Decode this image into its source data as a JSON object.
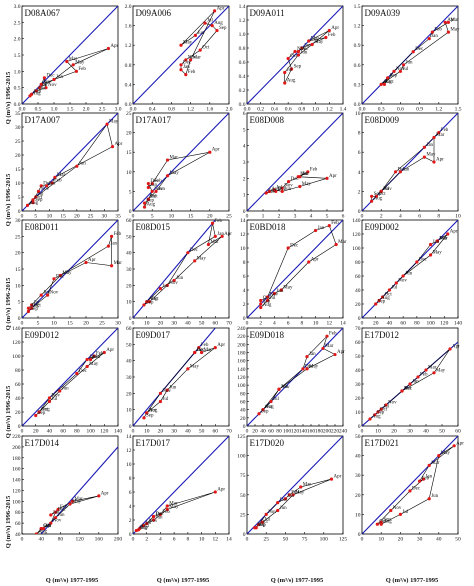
{
  "colors": {
    "identity_line": "#1a1ab8",
    "series_line": "#000000",
    "point": "#e01818"
  },
  "axis_titles": {
    "x": "Q (m³/s) 1977-1995",
    "y": "Q (m³/s) 1996-2015"
  },
  "chart_data": [
    {
      "type": "scatter",
      "title": "D08A067",
      "xlim": [
        0,
        3
      ],
      "ylim": [
        0,
        3
      ],
      "xticks": [
        "0.0",
        "0.5",
        "1.0",
        "1.5",
        "2.0",
        "2.5",
        "3.0"
      ],
      "yticks": [
        "0.0",
        "0.5",
        "1.0",
        "1.5",
        "2.0",
        "2.5",
        "3.0"
      ],
      "months": [
        "Jan",
        "Feb",
        "Mar",
        "Apr",
        "May",
        "Jun",
        "Jul",
        "Aug",
        "Sep",
        "Oct",
        "Nov",
        "Dec"
      ],
      "x": [
        0.6,
        1.7,
        1.4,
        2.7,
        1.6,
        1.0,
        0.55,
        0.25,
        0.3,
        0.45,
        0.75,
        0.7
      ],
      "y": [
        0.6,
        1.0,
        1.3,
        1.7,
        1.2,
        0.75,
        0.5,
        0.25,
        0.3,
        0.4,
        0.5,
        0.8
      ]
    },
    {
      "type": "scatter",
      "title": "D09A006",
      "xlim": [
        0,
        2
      ],
      "ylim": [
        0,
        2
      ],
      "xticks": [
        "0.0",
        "0.4",
        "0.8",
        "1.2",
        "1.6",
        "2.0"
      ],
      "yticks": [
        "0.0",
        "0.4",
        "0.8",
        "1.2",
        "1.6",
        "2.0"
      ],
      "months": [
        "Jan",
        "Feb",
        "Mar",
        "Apr",
        "May",
        "Jun",
        "Jul",
        "Aug",
        "Sep",
        "Oct",
        "Nov",
        "Dec"
      ],
      "x": [
        1.0,
        1.1,
        1.2,
        1.7,
        1.0,
        1.3,
        1.5,
        1.65,
        1.75,
        1.4,
        1.1,
        1.0
      ],
      "y": [
        0.7,
        0.6,
        0.9,
        1.9,
        1.2,
        1.4,
        1.65,
        1.6,
        1.5,
        1.1,
        0.9,
        0.8
      ]
    },
    {
      "type": "scatter",
      "title": "D09A011",
      "xlim": [
        0,
        1.4
      ],
      "ylim": [
        0,
        1.4
      ],
      "xticks": [
        "0.0",
        "0.2",
        "0.4",
        "0.6",
        "0.8",
        "1.0",
        "1.2",
        "1.4"
      ],
      "yticks": [
        "0.0",
        "0.2",
        "0.4",
        "0.6",
        "0.8",
        "1.0",
        "1.2",
        "1.4"
      ],
      "months": [
        "Jan",
        "Feb",
        "Mar",
        "Apr",
        "May",
        "Jun",
        "Jul",
        "Aug",
        "Sep",
        "Oct",
        "Nov",
        "Dec"
      ],
      "x": [
        0.8,
        1.15,
        0.9,
        1.2,
        0.95,
        0.75,
        0.55,
        0.55,
        0.65,
        0.6,
        0.7,
        0.75
      ],
      "y": [
        0.8,
        0.95,
        0.9,
        1.05,
        0.85,
        0.7,
        0.45,
        0.3,
        0.5,
        0.65,
        0.75,
        0.75
      ]
    },
    {
      "type": "scatter",
      "title": "D09A039",
      "xlim": [
        0,
        1.5
      ],
      "ylim": [
        0,
        1.5
      ],
      "xticks": [
        "0.0",
        "0.3",
        "0.6",
        "0.9",
        "1.2",
        "1.5"
      ],
      "yticks": [
        "0.0",
        "0.3",
        "0.6",
        "0.9",
        "1.2",
        "1.5"
      ],
      "months": [
        "Jan",
        "Feb",
        "Mar",
        "Apr",
        "May",
        "Jun",
        "Jul",
        "Aug",
        "Sep",
        "Oct",
        "Nov",
        "Dec"
      ],
      "x": [
        1.05,
        1.1,
        1.35,
        1.3,
        1.35,
        0.65,
        0.6,
        0.3,
        0.4,
        0.35,
        0.5,
        0.8
      ],
      "y": [
        1.0,
        1.1,
        1.25,
        1.25,
        1.1,
        0.6,
        0.5,
        0.3,
        0.4,
        0.3,
        0.5,
        0.8
      ]
    },
    {
      "type": "scatter",
      "title": "D17A007",
      "xlim": [
        0,
        35
      ],
      "ylim": [
        0,
        35
      ],
      "xticks": [
        "0",
        "5",
        "10",
        "15",
        "20",
        "25",
        "30",
        "35"
      ],
      "yticks": [
        "0",
        "5",
        "10",
        "15",
        "20",
        "25",
        "30",
        "35"
      ],
      "months": [
        "Jan",
        "Feb",
        "Mar",
        "Apr",
        "May",
        "Jun",
        "Jul",
        "Aug",
        "Sep",
        "Oct",
        "Nov",
        "Dec"
      ],
      "x": [
        9,
        11,
        12,
        33,
        31,
        20,
        5,
        2,
        4,
        4,
        6,
        7
      ],
      "y": [
        9,
        10,
        12,
        23,
        31,
        16,
        5,
        2,
        3,
        4,
        7,
        9
      ]
    },
    {
      "type": "scatter",
      "title": "D17A017",
      "xlim": [
        0,
        25
      ],
      "ylim": [
        0,
        25
      ],
      "xticks": [
        "0",
        "5",
        "10",
        "15",
        "20",
        "25"
      ],
      "yticks": [
        "0",
        "5",
        "10",
        "15",
        "20",
        "25"
      ],
      "months": [
        "Jan",
        "Feb",
        "Mar",
        "Apr",
        "May",
        "Jun",
        "Jul",
        "Aug",
        "Sep",
        "Oct",
        "Nov",
        "Dec"
      ],
      "x": [
        4,
        5,
        9,
        20,
        9,
        6,
        4,
        3,
        3,
        4,
        5,
        4
      ],
      "y": [
        6,
        7,
        13,
        15,
        9,
        5,
        3,
        1,
        2,
        3,
        5,
        7
      ]
    },
    {
      "type": "scatter",
      "title": "E08D008",
      "xlim": [
        0,
        6
      ],
      "ylim": [
        0,
        6
      ],
      "xticks": [
        "0",
        "1",
        "2",
        "3",
        "4",
        "5",
        "6"
      ],
      "yticks": [
        "0",
        "1",
        "2",
        "3",
        "4",
        "5",
        "6"
      ],
      "months": [
        "Jan",
        "Feb",
        "Mar",
        "Apr",
        "May",
        "Jun",
        "Jul",
        "Aug",
        "Sep",
        "Oct",
        "Nov",
        "Dec"
      ],
      "x": [
        3.3,
        3.8,
        3.2,
        5.0,
        3.3,
        2.2,
        1.7,
        1.4,
        1.2,
        1.8,
        2.2,
        2.6
      ],
      "y": [
        2.1,
        2.4,
        2.1,
        2.0,
        1.5,
        1.2,
        1.3,
        1.2,
        1.1,
        1.2,
        1.4,
        1.8
      ]
    },
    {
      "type": "scatter",
      "title": "E08D009",
      "xlim": [
        0,
        10
      ],
      "ylim": [
        0,
        10
      ],
      "xticks": [
        "0",
        "2",
        "4",
        "6",
        "8",
        "10"
      ],
      "yticks": [
        "0",
        "2",
        "4",
        "6",
        "8",
        "10"
      ],
      "months": [
        "Jan",
        "Feb",
        "Mar",
        "Apr",
        "May",
        "Jun",
        "Jul",
        "Aug",
        "Sep",
        "Oct",
        "Nov",
        "Dec"
      ],
      "x": [
        6.5,
        8,
        7.5,
        7.5,
        6.5,
        4,
        2,
        1,
        1,
        1.5,
        2,
        3.5
      ],
      "y": [
        6.5,
        8,
        7.5,
        5,
        5.5,
        4,
        2,
        1,
        1.5,
        1.5,
        2,
        4
      ]
    },
    {
      "type": "scatter",
      "title": "E08D011",
      "xlim": [
        0,
        30
      ],
      "ylim": [
        0,
        30
      ],
      "xticks": [
        "0",
        "5",
        "10",
        "15",
        "20",
        "25",
        "30"
      ],
      "yticks": [
        "0",
        "5",
        "10",
        "15",
        "20",
        "25",
        "30"
      ],
      "months": [
        "Jan",
        "Feb",
        "Mar",
        "Apr",
        "May",
        "Jun",
        "Jul",
        "Aug",
        "Sep",
        "Oct",
        "Nov",
        "Dec"
      ],
      "x": [
        27,
        28,
        28,
        20,
        12,
        6,
        3,
        2,
        2,
        3,
        8,
        10
      ],
      "y": [
        22,
        25,
        16,
        17,
        13,
        7,
        4,
        3,
        2,
        3,
        7,
        12
      ]
    },
    {
      "type": "scatter",
      "title": "E08D015",
      "xlim": [
        0,
        70
      ],
      "ylim": [
        0,
        60
      ],
      "xticks": [
        "0",
        "10",
        "20",
        "30",
        "40",
        "50",
        "60",
        "70"
      ],
      "yticks": [
        "0",
        "10",
        "20",
        "30",
        "40",
        "50",
        "60"
      ],
      "months": [
        "Jan",
        "Feb",
        "Mar",
        "Apr",
        "May",
        "Jun",
        "Jul",
        "Aug",
        "Sep",
        "Oct",
        "Nov",
        "Dec"
      ],
      "x": [
        60,
        58,
        55,
        65,
        45,
        30,
        20,
        10,
        8,
        12,
        25,
        40
      ],
      "y": [
        50,
        58,
        45,
        50,
        35,
        23,
        18,
        10,
        8,
        10,
        20,
        40
      ]
    },
    {
      "type": "scatter",
      "title": "E0BD018",
      "xlim": [
        0,
        14
      ],
      "ylim": [
        0,
        14
      ],
      "xticks": [
        "0",
        "2",
        "4",
        "6",
        "8",
        "10",
        "12",
        "14"
      ],
      "yticks": [
        "0",
        "2",
        "4",
        "6",
        "8",
        "10",
        "12",
        "14"
      ],
      "months": [
        "Jan",
        "Feb",
        "Mar",
        "Apr",
        "May",
        "Jun",
        "Jul",
        "Aug",
        "Sep",
        "Oct",
        "Nov",
        "Dec"
      ],
      "x": [
        10,
        12,
        13,
        9,
        5,
        4,
        3,
        2,
        2,
        2,
        3,
        6
      ],
      "y": [
        12.5,
        13.2,
        10.5,
        8,
        4,
        3.5,
        2.5,
        1.5,
        2,
        2.5,
        3,
        10
      ]
    },
    {
      "type": "scatter",
      "title": "E09D002",
      "xlim": [
        0,
        140
      ],
      "ylim": [
        0,
        140
      ],
      "xticks": [
        "0",
        "20",
        "40",
        "60",
        "80",
        "100",
        "120",
        "140"
      ],
      "yticks": [
        "0",
        "20",
        "40",
        "60",
        "80",
        "100",
        "120",
        "140"
      ],
      "months": [
        "Jan",
        "Feb",
        "Mar",
        "Apr",
        "May",
        "Jun",
        "Jul",
        "Aug",
        "Sep",
        "Oct",
        "Nov",
        "Dec"
      ],
      "x": [
        100,
        110,
        110,
        125,
        100,
        60,
        40,
        25,
        20,
        30,
        50,
        80
      ],
      "y": [
        105,
        110,
        110,
        120,
        90,
        60,
        40,
        25,
        20,
        30,
        50,
        80
      ]
    },
    {
      "type": "scatter",
      "title": "E09D012",
      "xlim": [
        0,
        140
      ],
      "ylim": [
        0,
        140
      ],
      "xticks": [
        "0",
        "20",
        "40",
        "60",
        "80",
        "100",
        "120",
        "140"
      ],
      "yticks": [
        "0",
        "20",
        "40",
        "60",
        "80",
        "100",
        "120",
        "140"
      ],
      "months": [
        "Jan",
        "Feb",
        "Mar",
        "Apr",
        "May",
        "Jun",
        "Jul",
        "Aug",
        "Sep",
        "Oct",
        "Nov",
        "Dec"
      ],
      "x": [
        95,
        105,
        100,
        120,
        95,
        55,
        40,
        25,
        20,
        25,
        40,
        80
      ],
      "y": [
        95,
        100,
        95,
        105,
        85,
        50,
        35,
        20,
        15,
        20,
        40,
        75
      ]
    },
    {
      "type": "scatter",
      "title": "E09D017",
      "xlim": [
        0,
        70
      ],
      "ylim": [
        0,
        60
      ],
      "xticks": [
        "0",
        "10",
        "20",
        "30",
        "40",
        "50",
        "60",
        "70"
      ],
      "yticks": [
        "0",
        "10",
        "20",
        "30",
        "40",
        "50",
        "60"
      ],
      "months": [
        "Jan",
        "Feb",
        "Mar",
        "Apr",
        "May",
        "Jun",
        "Jul",
        "Aug",
        "Sep",
        "Oct",
        "Nov",
        "Dec"
      ],
      "x": [
        45,
        48,
        50,
        60,
        40,
        25,
        20,
        10,
        8,
        10,
        20,
        45
      ],
      "y": [
        45,
        48,
        45,
        48,
        35,
        22,
        15,
        8,
        5,
        8,
        20,
        45
      ]
    },
    {
      "type": "scatter",
      "title": "E09D018",
      "xlim": [
        0,
        240
      ],
      "ylim": [
        0,
        240
      ],
      "xticks": [
        "0",
        "20",
        "40",
        "60",
        "80",
        "100",
        "120",
        "140",
        "160",
        "180",
        "200",
        "220",
        "240"
      ],
      "yticks": [
        "0",
        "20",
        "40",
        "60",
        "80",
        "100",
        "120",
        "140",
        "160",
        "180",
        "200",
        "220",
        "240"
      ],
      "months": [
        "Jan",
        "Feb",
        "Mar",
        "Apr",
        "May",
        "Jun",
        "Jul",
        "Aug",
        "Sep",
        "Oct",
        "Nov",
        "Dec"
      ],
      "x": [
        150,
        200,
        190,
        220,
        150,
        80,
        60,
        40,
        30,
        40,
        80,
        140
      ],
      "y": [
        170,
        220,
        190,
        175,
        140,
        90,
        60,
        40,
        30,
        40,
        90,
        140
      ]
    },
    {
      "type": "scatter",
      "title": "E17D012",
      "xlim": [
        0,
        60
      ],
      "ylim": [
        0,
        70
      ],
      "xticks": [
        "0",
        "10",
        "20",
        "30",
        "40",
        "50",
        "60"
      ],
      "yticks": [
        "0",
        "10",
        "20",
        "30",
        "40",
        "50",
        "60",
        "70"
      ],
      "months": [
        "Jan",
        "Feb",
        "Mar",
        "Apr",
        "May",
        "Jun",
        "Jul",
        "Aug",
        "Sep",
        "Oct",
        "Nov",
        "Dec"
      ],
      "x": [
        30,
        35,
        40,
        55,
        45,
        25,
        12,
        5,
        8,
        10,
        15,
        25
      ],
      "y": [
        30,
        35,
        40,
        55,
        38,
        25,
        12,
        5,
        8,
        10,
        15,
        25
      ]
    },
    {
      "type": "scatter",
      "title": "E17D014",
      "xlim": [
        0,
        200
      ],
      "ylim": [
        40,
        220
      ],
      "xticks": [
        "0",
        "40",
        "80",
        "120",
        "160",
        "200"
      ],
      "yticks": [
        "40",
        "60",
        "80",
        "100",
        "120",
        "140",
        "160",
        "180",
        "200",
        "220"
      ],
      "months": [
        "Jan",
        "Feb",
        "Mar",
        "Apr",
        "May",
        "Jun",
        "Jul",
        "Aug",
        "Sep",
        "Oct",
        "Nov",
        "Dec"
      ],
      "x": [
        60,
        75,
        105,
        160,
        100,
        70,
        45,
        30,
        40,
        40,
        60,
        70
      ],
      "y": [
        75,
        85,
        100,
        110,
        95,
        70,
        50,
        40,
        50,
        50,
        60,
        80
      ]
    },
    {
      "type": "scatter",
      "title": "E17D017",
      "xlim": [
        0,
        14
      ],
      "ylim": [
        0,
        14
      ],
      "xticks": [
        "0",
        "2",
        "4",
        "6",
        "8",
        "10",
        "12",
        "14"
      ],
      "yticks": [
        "0",
        "2",
        "4",
        "6",
        "8",
        "10",
        "12",
        "14"
      ],
      "months": [
        "Jan",
        "Feb",
        "Mar",
        "Apr",
        "May",
        "Jun",
        "Jul",
        "Aug",
        "Sep",
        "Oct",
        "Nov",
        "Dec"
      ],
      "x": [
        3,
        4,
        5,
        12,
        5,
        3,
        1.5,
        0.5,
        0.8,
        1,
        2,
        3
      ],
      "y": [
        2.5,
        2.8,
        4,
        6,
        3.5,
        2,
        1.2,
        0.5,
        0.6,
        0.8,
        1.5,
        2.5
      ]
    },
    {
      "type": "scatter",
      "title": "E17D020",
      "xlim": [
        0,
        125
      ],
      "ylim": [
        0,
        125
      ],
      "xticks": [
        "0",
        "25",
        "50",
        "75",
        "100",
        "125"
      ],
      "yticks": [
        "0",
        "25",
        "50",
        "75",
        "100",
        "125"
      ],
      "months": [
        "Jan",
        "Feb",
        "Mar",
        "Apr",
        "May",
        "Jun",
        "Jul",
        "Aug",
        "Sep",
        "Oct",
        "Nov",
        "Dec"
      ],
      "x": [
        50,
        55,
        70,
        110,
        60,
        40,
        20,
        10,
        12,
        15,
        25,
        40
      ],
      "y": [
        45,
        50,
        60,
        70,
        50,
        30,
        15,
        8,
        8,
        12,
        25,
        40
      ]
    },
    {
      "type": "scatter",
      "title": "E17D021",
      "xlim": [
        0,
        50
      ],
      "ylim": [
        0,
        50
      ],
      "xticks": [
        "0",
        "10",
        "20",
        "30",
        "40",
        "50"
      ],
      "yticks": [
        "0",
        "10",
        "20",
        "30",
        "40",
        "50"
      ],
      "months": [
        "Jan",
        "Feb",
        "Mar",
        "Apr",
        "May",
        "Jun",
        "Jul",
        "Aug",
        "Sep",
        "Oct",
        "Nov",
        "Dec"
      ],
      "x": [
        32,
        30,
        35,
        48,
        40,
        35,
        20,
        10,
        10,
        8,
        15,
        25
      ],
      "y": [
        28,
        27,
        35,
        45,
        40,
        18,
        10,
        5,
        6,
        5,
        12,
        22
      ]
    }
  ]
}
